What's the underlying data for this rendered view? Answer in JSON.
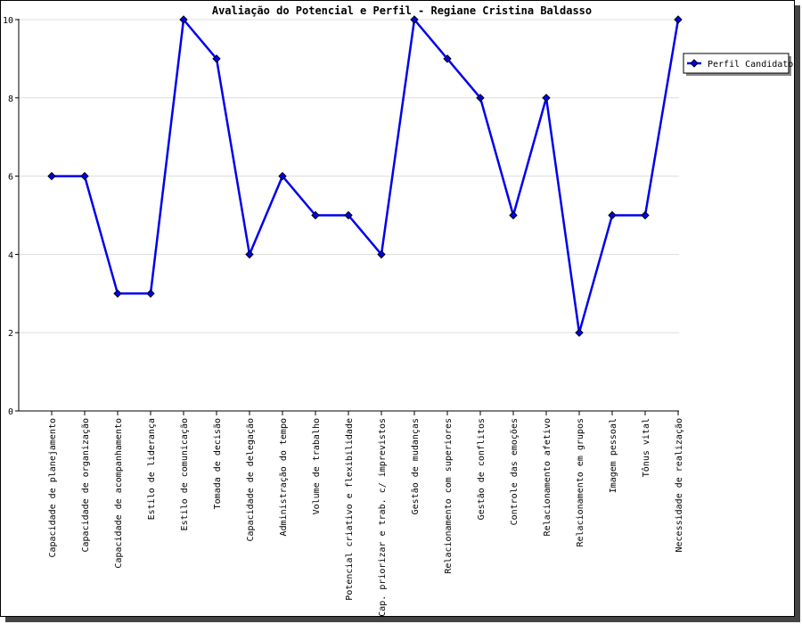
{
  "chart_data": {
    "type": "line",
    "title": "Avaliação do Potencial e Perfil - Regiane Cristina Baldasso",
    "xlabel": "",
    "ylabel": "",
    "ylim": [
      0,
      10
    ],
    "yticks": [
      0,
      2,
      4,
      6,
      8,
      10
    ],
    "grid": true,
    "legend_position": "top-right",
    "categories": [
      "Capacidade de planejamento",
      "Capacidade de organização",
      "Capacidade de acompanhamento",
      "Estilo de liderança",
      "Estilo de comunicação",
      "Tomada de decisão",
      "Capacidade de delegação",
      "Administração do tempo",
      "Volume de trabalho",
      "Potencial criativo e flexibilidade",
      "Cap. priorizar e trab. c/ imprevistos",
      "Gestão de mudanças",
      "Relacionamento com superiores",
      "Gestão de conflitos",
      "Controle das emoções",
      "Relacionamento afetivo",
      "Relacionamento em grupos",
      "Imagem pessoal",
      "Tônus vital",
      "Necessidade de realização"
    ],
    "series": [
      {
        "name": "Perfil Candidato",
        "color": "#0000ee",
        "marker": "diamond",
        "values": [
          6,
          6,
          3,
          3,
          10,
          9,
          4,
          6,
          5,
          5,
          4,
          10,
          9,
          8,
          5,
          8,
          2,
          5,
          5,
          10
        ]
      }
    ]
  }
}
